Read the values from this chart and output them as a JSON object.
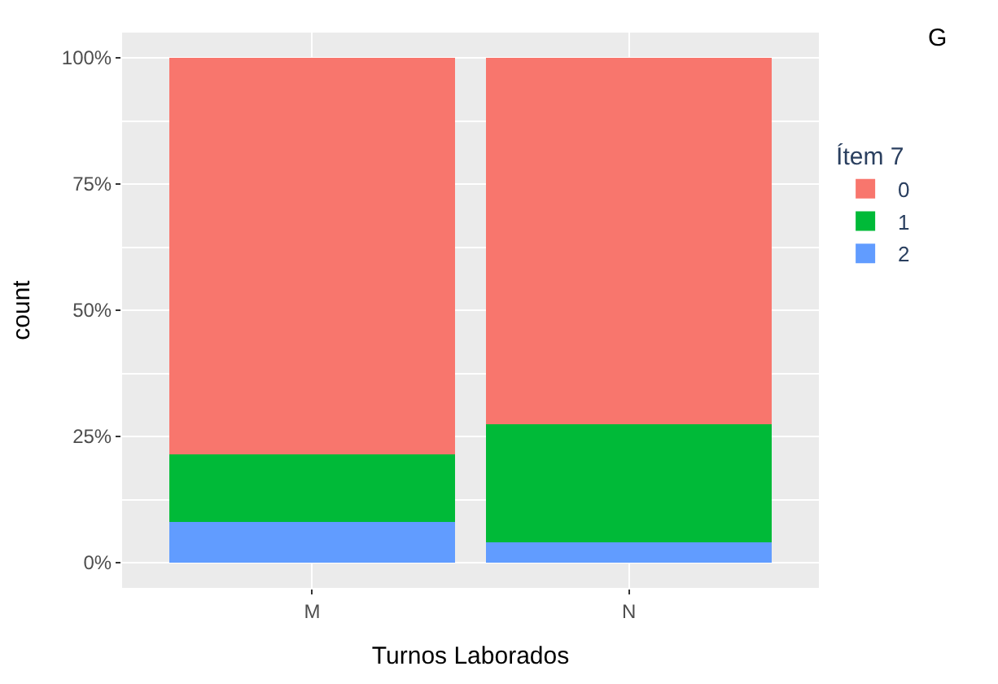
{
  "chart_data": {
    "type": "bar",
    "stacked": true,
    "xlabel": "Turnos Laborados",
    "ylabel": "count",
    "legend_title": "Ítem 7",
    "categories": [
      "M",
      "N"
    ],
    "series": [
      {
        "name": "2",
        "color": "#619cff",
        "values": [
          8,
          4
        ]
      },
      {
        "name": "1",
        "color": "#00ba38",
        "values": [
          13.5,
          23.5
        ]
      },
      {
        "name": "0",
        "color": "#f8766d",
        "values": [
          78.5,
          72.5
        ]
      }
    ],
    "ylim": [
      -5,
      105
    ],
    "yticks": [
      {
        "value": 0,
        "label": "0%"
      },
      {
        "value": 25,
        "label": "25%"
      },
      {
        "value": 50,
        "label": "50%"
      },
      {
        "value": 75,
        "label": "75%"
      },
      {
        "value": 100,
        "label": "100%"
      }
    ],
    "grid": true,
    "legend": "right",
    "annotations": [
      "G"
    ]
  }
}
